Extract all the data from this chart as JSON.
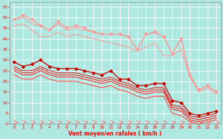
{
  "bg_color": "#aee8e0",
  "grid_color": "#ffffff",
  "xlabel": "Vent moyen/en rafales ( km/h )",
  "xlabel_color": "#ff0000",
  "tick_color": "#ff0000",
  "xlim": [
    -0.5,
    23.5
  ],
  "ylim": [
    0,
    57
  ],
  "yticks": [
    0,
    5,
    10,
    15,
    20,
    25,
    30,
    35,
    40,
    45,
    50,
    55
  ],
  "xticks": [
    0,
    1,
    2,
    3,
    4,
    5,
    6,
    7,
    8,
    9,
    10,
    11,
    12,
    13,
    14,
    15,
    16,
    17,
    18,
    19,
    20,
    21,
    22,
    23
  ],
  "series_light": [
    {
      "x": [
        0,
        1,
        2,
        3,
        4,
        5,
        6,
        7,
        8,
        9,
        10,
        11,
        12,
        13,
        14,
        15,
        16,
        17,
        18,
        19,
        20,
        21,
        22,
        23
      ],
      "y": [
        49,
        51,
        49,
        46,
        44,
        48,
        45,
        46,
        45,
        43,
        42,
        42,
        42,
        41,
        35,
        42,
        43,
        41,
        33,
        40,
        23,
        16,
        18,
        15
      ],
      "color": "#ff9999",
      "marker": "v",
      "ms": 2.5,
      "lw": 1.0
    },
    {
      "x": [
        0,
        1,
        2,
        3,
        4,
        5,
        6,
        7,
        8,
        9,
        10,
        11,
        12,
        13,
        14,
        15,
        16,
        17,
        18,
        19,
        20,
        21,
        22,
        23
      ],
      "y": [
        49,
        50,
        47,
        46,
        44,
        47,
        44,
        45,
        44,
        43,
        42,
        42,
        42,
        41,
        35,
        42,
        43,
        41,
        33,
        40,
        23,
        16,
        18,
        15
      ],
      "color": "#ff9999",
      "marker": null,
      "ms": 0,
      "lw": 0.8
    },
    {
      "x": [
        0,
        1,
        2,
        3,
        4,
        5,
        6,
        7,
        8,
        9,
        10,
        11,
        12,
        13,
        14,
        15,
        16,
        17,
        18,
        19,
        20,
        21,
        22,
        23
      ],
      "y": [
        46,
        47,
        44,
        41,
        41,
        43,
        41,
        42,
        41,
        40,
        39,
        38,
        37,
        36,
        34,
        36,
        38,
        32,
        32,
        35,
        22,
        15,
        17,
        14
      ],
      "color": "#ff9999",
      "marker": null,
      "ms": 0,
      "lw": 0.8
    }
  ],
  "series_dark": [
    {
      "x": [
        0,
        1,
        2,
        3,
        4,
        5,
        6,
        7,
        8,
        9,
        10,
        11,
        12,
        13,
        14,
        15,
        16,
        17,
        18,
        19,
        20,
        21,
        22,
        23
      ],
      "y": [
        29,
        27,
        28,
        30,
        27,
        26,
        26,
        26,
        25,
        24,
        23,
        25,
        21,
        21,
        18,
        18,
        19,
        19,
        11,
        10,
        5,
        4,
        5,
        6
      ],
      "color": "#cc0000",
      "marker": "D",
      "ms": 2.0,
      "lw": 1.0
    },
    {
      "x": [
        0,
        1,
        2,
        3,
        4,
        5,
        6,
        7,
        8,
        9,
        10,
        11,
        12,
        13,
        14,
        15,
        16,
        17,
        18,
        19,
        20,
        21,
        22,
        23
      ],
      "y": [
        27,
        25,
        25,
        27,
        25,
        24,
        24,
        24,
        23,
        22,
        21,
        22,
        20,
        19,
        17,
        16,
        17,
        17,
        9,
        8,
        4,
        3,
        4,
        5
      ],
      "color": "#dd2222",
      "marker": null,
      "ms": 0,
      "lw": 0.8
    },
    {
      "x": [
        0,
        1,
        2,
        3,
        4,
        5,
        6,
        7,
        8,
        9,
        10,
        11,
        12,
        13,
        14,
        15,
        16,
        17,
        18,
        19,
        20,
        21,
        22,
        23
      ],
      "y": [
        26,
        24,
        24,
        26,
        24,
        23,
        23,
        23,
        22,
        21,
        20,
        21,
        19,
        18,
        16,
        15,
        16,
        16,
        8,
        7,
        3,
        2,
        3,
        4
      ],
      "color": "#ee2222",
      "marker": null,
      "ms": 0,
      "lw": 0.8
    },
    {
      "x": [
        0,
        1,
        2,
        3,
        4,
        5,
        6,
        7,
        8,
        9,
        10,
        11,
        12,
        13,
        14,
        15,
        16,
        17,
        18,
        19,
        20,
        21,
        22,
        23
      ],
      "y": [
        25,
        23,
        23,
        25,
        23,
        22,
        22,
        22,
        21,
        20,
        19,
        20,
        18,
        17,
        15,
        14,
        15,
        15,
        7,
        6,
        2,
        1,
        2,
        3
      ],
      "color": "#ff2222",
      "marker": null,
      "ms": 0,
      "lw": 0.8
    },
    {
      "x": [
        0,
        1,
        2,
        3,
        4,
        5,
        6,
        7,
        8,
        9,
        10,
        11,
        12,
        13,
        14,
        15,
        16,
        17,
        18,
        19,
        20,
        21,
        22,
        23
      ],
      "y": [
        23,
        21,
        21,
        23,
        21,
        20,
        20,
        20,
        19,
        18,
        17,
        18,
        16,
        15,
        13,
        12,
        13,
        13,
        5,
        4,
        1,
        0,
        1,
        2
      ],
      "color": "#ff4444",
      "marker": null,
      "ms": 0,
      "lw": 0.8
    }
  ]
}
